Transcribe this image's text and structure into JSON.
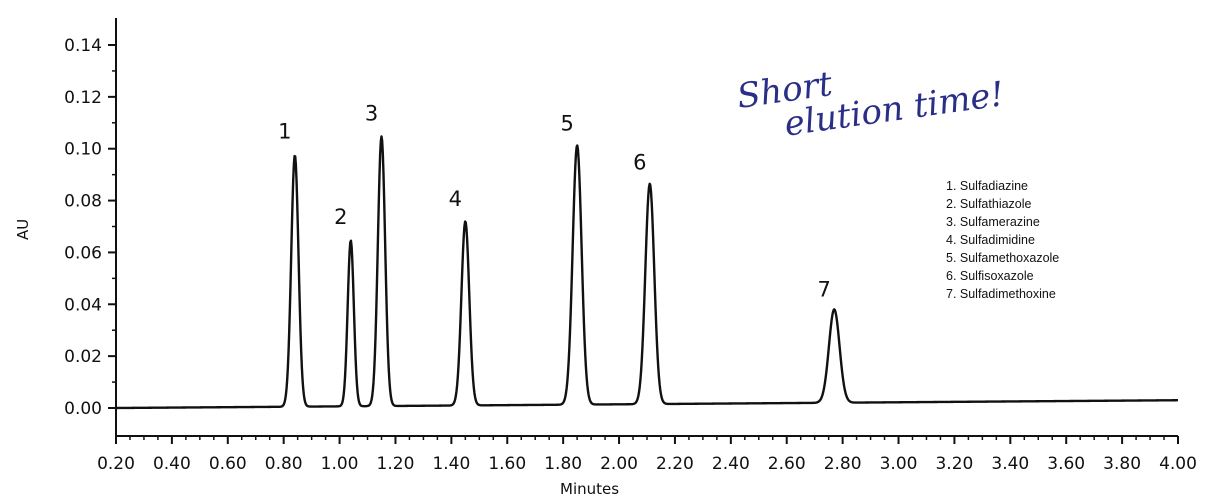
{
  "annotation": {
    "line1": "Short",
    "line2": "elution time!"
  },
  "legend_items": [
    "1.  Sulfadiazine",
    "2.  Sulfathiazole",
    "3.  Sulfamerazine",
    "4.  Sulfadimidine",
    "5.  Sulfamethoxazole",
    "6.  Sulfisoxazole",
    "7.  Sulfadimethoxine"
  ],
  "colors": {
    "trace": "#111111",
    "annotation": "#2a2f86"
  },
  "chart_data": {
    "type": "line",
    "xlabel": "Minutes",
    "ylabel": "AU",
    "xlim": [
      0.2,
      4.0
    ],
    "ylim": [
      0.0,
      0.14
    ],
    "x_ticks": [
      "0.20",
      "0.40",
      "0.60",
      "0.80",
      "1.00",
      "1.20",
      "1.40",
      "1.60",
      "1.80",
      "2.00",
      "2.20",
      "2.40",
      "2.60",
      "2.80",
      "3.00",
      "3.20",
      "3.40",
      "3.60",
      "3.80",
      "4.00"
    ],
    "y_ticks": [
      "0.00",
      "0.02",
      "0.04",
      "0.06",
      "0.08",
      "0.10",
      "0.12",
      "0.14"
    ],
    "baseline": {
      "start": 0.0,
      "end": 0.003
    },
    "peaks": [
      {
        "label": "1",
        "x": 0.84,
        "y": 0.097,
        "width": 0.013
      },
      {
        "label": "2",
        "x": 1.04,
        "y": 0.064,
        "width": 0.011
      },
      {
        "label": "3",
        "x": 1.15,
        "y": 0.104,
        "width": 0.013
      },
      {
        "label": "4",
        "x": 1.45,
        "y": 0.071,
        "width": 0.014
      },
      {
        "label": "5",
        "x": 1.85,
        "y": 0.1,
        "width": 0.016
      },
      {
        "label": "6",
        "x": 2.11,
        "y": 0.085,
        "width": 0.016
      },
      {
        "label": "7",
        "x": 2.77,
        "y": 0.036,
        "width": 0.019
      }
    ],
    "grid": false,
    "legend_position": "right"
  }
}
